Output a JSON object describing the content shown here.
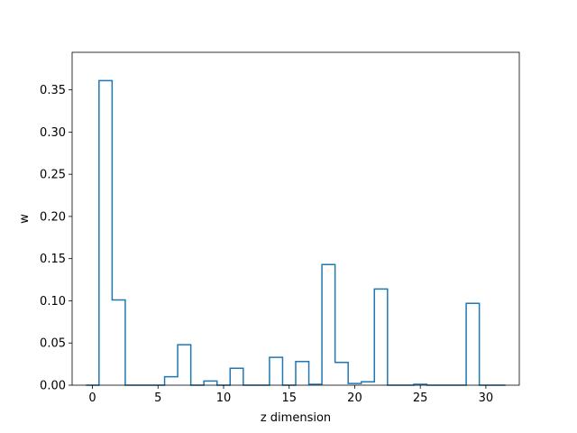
{
  "chart_data": {
    "type": "bar",
    "subtype": "step-histogram",
    "title": "",
    "xlabel": "z dimension",
    "ylabel": "w",
    "xlim": [
      -1.55,
      32.55
    ],
    "ylim": [
      0,
      0.3945
    ],
    "xticks": [
      0,
      5,
      10,
      15,
      20,
      25,
      30
    ],
    "xtick_labels": [
      "0",
      "5",
      "10",
      "15",
      "20",
      "25",
      "30"
    ],
    "yticks": [
      0.0,
      0.05,
      0.1,
      0.15,
      0.2,
      0.25,
      0.3,
      0.35
    ],
    "ytick_labels": [
      "0.00",
      "0.05",
      "0.10",
      "0.15",
      "0.20",
      "0.25",
      "0.30",
      "0.35"
    ],
    "grid": false,
    "legend": "none",
    "color": "#1f77b4",
    "series": [
      {
        "bin_edges": [
          -0.5,
          0.5,
          1.5,
          2.5,
          3.5,
          4.5,
          5.5,
          6.5,
          7.5,
          8.5,
          9.5,
          10.5,
          11.5,
          12.5,
          13.5,
          14.5,
          15.5,
          16.5,
          17.5,
          18.5,
          19.5,
          20.5,
          21.5,
          22.5,
          23.5,
          24.5,
          25.5,
          26.5,
          27.5,
          28.5,
          29.5,
          30.5,
          31.5
        ],
        "values": [
          0.0,
          0.361,
          0.101,
          0.0,
          0.0,
          0.0,
          0.01,
          0.048,
          0.0,
          0.005,
          0.0,
          0.02,
          0.0,
          0.0,
          0.033,
          0.0,
          0.028,
          0.001,
          0.143,
          0.027,
          0.002,
          0.004,
          0.114,
          0.0,
          0.0,
          0.001,
          0.0,
          0.0,
          0.0,
          0.097,
          0.0,
          0.0
        ]
      }
    ]
  }
}
